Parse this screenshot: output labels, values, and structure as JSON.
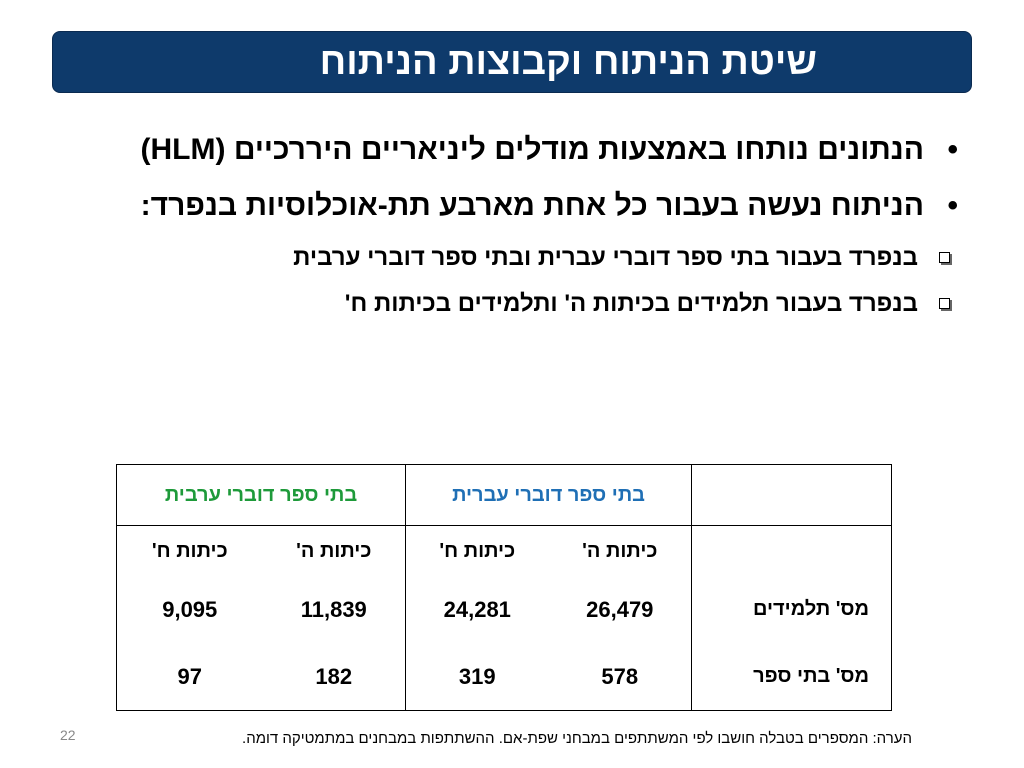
{
  "title": "שיטת הניתוח וקבוצות הניתוח",
  "bullets": [
    "הנתונים נותחו באמצעות מודלים ליניאריים היררכיים (HLM)",
    "הניתוח נעשה בעבור כל אחת מארבע תת-אוכלוסיות בנפרד:"
  ],
  "sub_bullets": [
    "בנפרד בעבור בתי ספר דוברי עברית ובתי ספר דוברי ערבית",
    "בנפרד בעבור תלמידים בכיתות ה' ותלמידים בכיתות ח'"
  ],
  "table": {
    "group_headers": {
      "hebrew": "בתי ספר דוברי עברית",
      "arabic": "בתי ספר דוברי ערבית"
    },
    "grade_headers": {
      "hebrew_5": "כיתות ה'",
      "hebrew_8": "כיתות ח'",
      "arabic_5": "כיתות ה'",
      "arabic_8": "כיתות ח'"
    },
    "rows": [
      {
        "label": "מס' תלמידים",
        "hebrew_5": "26,479",
        "hebrew_8": "24,281",
        "arabic_5": "11,839",
        "arabic_8": "9,095"
      },
      {
        "label": "מס' בתי ספר",
        "hebrew_5": "578",
        "hebrew_8": "319",
        "arabic_5": "182",
        "arabic_8": "97"
      }
    ]
  },
  "note": "הערה: המספרים בטבלה חושבו לפי המשתתפים במבחני שפת-אם. ההשתתפות במבחנים במתמטיקה דומה.",
  "slide_number": "22",
  "colors": {
    "title_bar": "#0e3a6b",
    "hebrew_header": "#1f6fb5",
    "arabic_header": "#1e9a3a"
  }
}
